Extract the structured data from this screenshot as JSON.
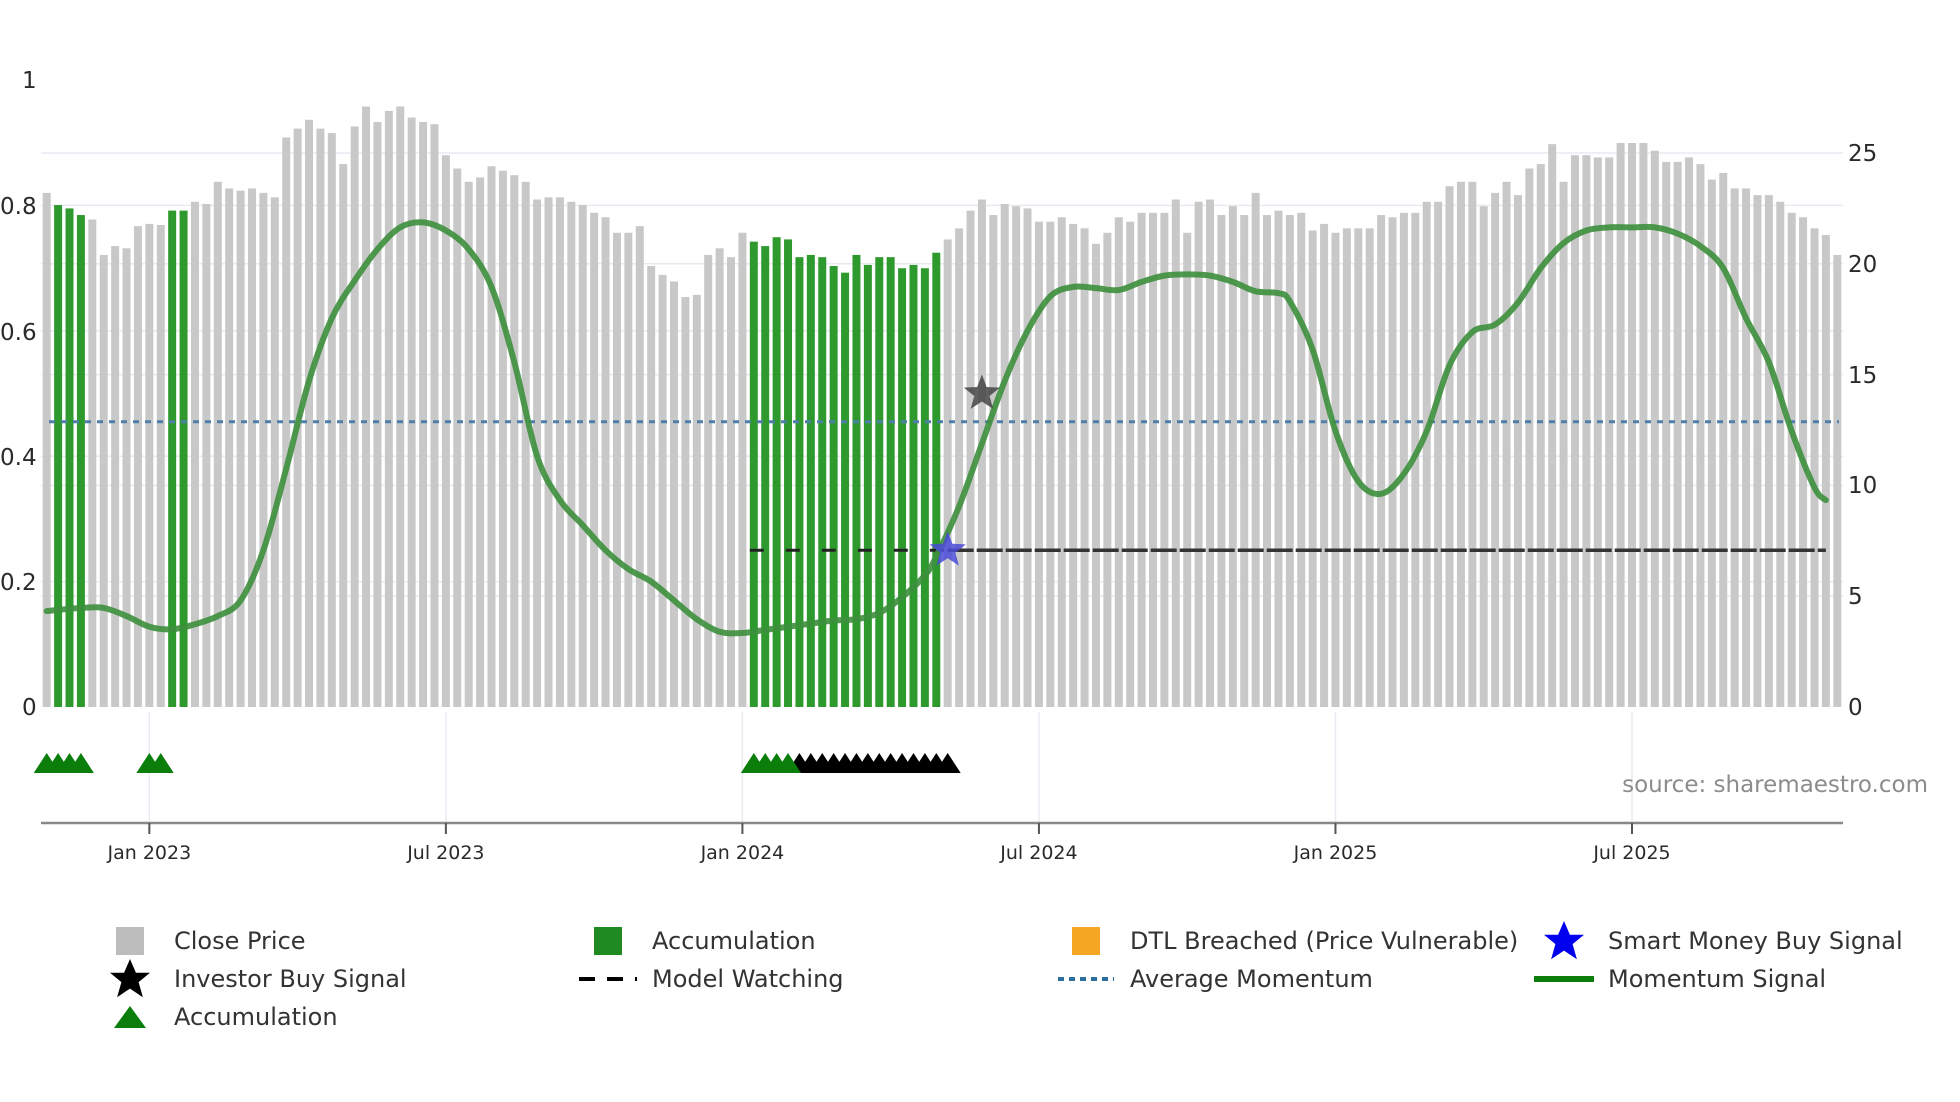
{
  "chart_data": {
    "type": "bar",
    "title": "",
    "xlabel": "",
    "ylabel_left": "",
    "ylabel_right": "",
    "left_axis": {
      "ticks": [
        0,
        0.2,
        0.4,
        0.6,
        0.8,
        1
      ],
      "tick_labels": [
        "0",
        "0.2",
        "0.4",
        "0.6",
        "0.8",
        "1"
      ],
      "range": [
        0,
        1
      ]
    },
    "right_axis": {
      "ticks": [
        0,
        5,
        10,
        15,
        20,
        25
      ],
      "tick_labels": [
        "0",
        "5",
        "10",
        "15",
        "20",
        "25"
      ],
      "range": [
        0,
        28.3
      ]
    },
    "x_ticks": [
      {
        "label": "Jan 2023",
        "bar_index": 9
      },
      {
        "label": "Jul 2023",
        "bar_index": 35
      },
      {
        "label": "Jan 2024",
        "bar_index": 61
      },
      {
        "label": "Jul 2024",
        "bar_index": 87
      },
      {
        "label": "Jan 2025",
        "bar_index": 113
      },
      {
        "label": "Jul 2025",
        "bar_index": 139
      }
    ],
    "grid": true,
    "legend_position": "bottom",
    "series": [
      {
        "name": "Close Price",
        "type": "bar",
        "axis": "right",
        "color": "#c8c8c8",
        "values": [
          23.2,
          22.65,
          22.5,
          22.2,
          22.0,
          20.4,
          20.8,
          20.7,
          21.7,
          21.8,
          21.75,
          22.4,
          22.4,
          22.8,
          22.7,
          23.7,
          23.4,
          23.3,
          23.4,
          23.2,
          23.0,
          25.7,
          26.1,
          26.5,
          26.1,
          25.9,
          24.5,
          26.2,
          27.1,
          26.4,
          26.9,
          27.1,
          26.6,
          26.4,
          26.3,
          24.9,
          24.3,
          23.7,
          23.9,
          24.4,
          24.2,
          24.0,
          23.7,
          22.9,
          23.0,
          23.0,
          22.8,
          22.65,
          22.3,
          22.1,
          21.4,
          21.4,
          21.7,
          19.9,
          19.5,
          19.2,
          18.5,
          18.6,
          20.4,
          20.7,
          20.3,
          21.4,
          21.0,
          20.8,
          21.2,
          21.1,
          20.3,
          20.4,
          20.3,
          19.9,
          19.6,
          20.4,
          19.95,
          20.3,
          20.3,
          19.8,
          19.95,
          19.8,
          20.5,
          21.1,
          21.6,
          22.4,
          22.9,
          22.2,
          22.7,
          22.6,
          22.5,
          21.9,
          21.9,
          22.1,
          21.8,
          21.6,
          20.9,
          21.4,
          22.1,
          21.9,
          22.3,
          22.3,
          22.3,
          22.9,
          21.4,
          22.8,
          22.9,
          22.2,
          22.6,
          22.2,
          23.2,
          22.2,
          22.4,
          22.2,
          22.3,
          21.5,
          21.8,
          21.4,
          21.6,
          21.6,
          21.6,
          22.2,
          22.1,
          22.3,
          22.3,
          22.8,
          22.8,
          23.5,
          23.7,
          23.7,
          22.6,
          23.2,
          23.7,
          23.1,
          24.3,
          24.5,
          25.4,
          23.7,
          24.9,
          24.9,
          24.8,
          24.8,
          25.45,
          25.45,
          25.45,
          25.1,
          24.6,
          24.6,
          24.8,
          24.5,
          23.8,
          24.1,
          23.4,
          23.4,
          23.1,
          23.1,
          22.8,
          22.3,
          22.1,
          21.6,
          21.3,
          20.4
        ]
      },
      {
        "name": "Accumulation",
        "type": "bar-highlight",
        "axis": "right",
        "color": "#2e9a2e",
        "bar_indices": [
          1,
          2,
          3,
          11,
          12,
          62,
          63,
          64,
          65,
          66,
          67,
          68,
          69,
          70,
          71,
          72,
          73,
          74,
          75,
          76,
          77,
          78
        ]
      },
      {
        "name": "Momentum Signal",
        "type": "line",
        "axis": "left",
        "color": "#3d8f3d",
        "points": [
          [
            0,
            0.153
          ],
          [
            3,
            0.158
          ],
          [
            5,
            0.158
          ],
          [
            7,
            0.145
          ],
          [
            9,
            0.128
          ],
          [
            11,
            0.124
          ],
          [
            13,
            0.132
          ],
          [
            15,
            0.145
          ],
          [
            17,
            0.17
          ],
          [
            19,
            0.25
          ],
          [
            21,
            0.38
          ],
          [
            23,
            0.52
          ],
          [
            25,
            0.62
          ],
          [
            27,
            0.68
          ],
          [
            29,
            0.73
          ],
          [
            31,
            0.765
          ],
          [
            33,
            0.773
          ],
          [
            35,
            0.76
          ],
          [
            37,
            0.73
          ],
          [
            39,
            0.67
          ],
          [
            41,
            0.55
          ],
          [
            43,
            0.4
          ],
          [
            45,
            0.33
          ],
          [
            47,
            0.29
          ],
          [
            49,
            0.25
          ],
          [
            51,
            0.22
          ],
          [
            53,
            0.2
          ],
          [
            55,
            0.17
          ],
          [
            57,
            0.14
          ],
          [
            59,
            0.12
          ],
          [
            61,
            0.118
          ],
          [
            63,
            0.123
          ],
          [
            65,
            0.128
          ],
          [
            67,
            0.133
          ],
          [
            69,
            0.138
          ],
          [
            71,
            0.14
          ],
          [
            73,
            0.15
          ],
          [
            75,
            0.175
          ],
          [
            77,
            0.21
          ],
          [
            78,
            0.24
          ],
          [
            80,
            0.32
          ],
          [
            82,
            0.42
          ],
          [
            84,
            0.52
          ],
          [
            86,
            0.6
          ],
          [
            88,
            0.655
          ],
          [
            90,
            0.67
          ],
          [
            92,
            0.668
          ],
          [
            94,
            0.665
          ],
          [
            96,
            0.678
          ],
          [
            98,
            0.688
          ],
          [
            100,
            0.69
          ],
          [
            102,
            0.688
          ],
          [
            104,
            0.678
          ],
          [
            106,
            0.663
          ],
          [
            108,
            0.66
          ],
          [
            109,
            0.647
          ],
          [
            111,
            0.57
          ],
          [
            113,
            0.44
          ],
          [
            115,
            0.36
          ],
          [
            117,
            0.34
          ],
          [
            119,
            0.372
          ],
          [
            121,
            0.44
          ],
          [
            123,
            0.545
          ],
          [
            125,
            0.598
          ],
          [
            127,
            0.61
          ],
          [
            129,
            0.645
          ],
          [
            131,
            0.7
          ],
          [
            133,
            0.74
          ],
          [
            135,
            0.76
          ],
          [
            137,
            0.765
          ],
          [
            139,
            0.765
          ],
          [
            141,
            0.765
          ],
          [
            143,
            0.755
          ],
          [
            145,
            0.735
          ],
          [
            147,
            0.7
          ],
          [
            149,
            0.62
          ],
          [
            151,
            0.55
          ],
          [
            153,
            0.44
          ],
          [
            155,
            0.35
          ],
          [
            156,
            0.33
          ]
        ]
      },
      {
        "name": "Average Momentum",
        "type": "hline",
        "axis": "left",
        "color": "#4f7fa8",
        "value": 0.455,
        "style": "dotted"
      },
      {
        "name": "Model Watching",
        "type": "hline-segment",
        "axis": "left",
        "color": "#333333",
        "value": 0.25,
        "from_bar": 62,
        "to_bar": 156,
        "style": "dashed"
      },
      {
        "name": "Smart Money Buy Signal",
        "type": "marker",
        "marker": "star",
        "axis": "left",
        "color": "#4a4ad8",
        "points": [
          [
            79,
            0.25
          ]
        ]
      },
      {
        "name": "Investor Buy Signal",
        "type": "marker",
        "marker": "star",
        "axis": "left",
        "color": "#444444",
        "points": [
          [
            82,
            0.5
          ]
        ]
      },
      {
        "name": "Accumulation",
        "type": "marker",
        "marker": "triangle",
        "row": "bottom",
        "color": "#0a7d0a",
        "bar_indices": [
          0,
          1,
          2,
          3,
          9,
          10,
          62,
          63,
          64,
          65
        ]
      },
      {
        "name": "Model Watching markers",
        "type": "marker",
        "marker": "triangle",
        "row": "bottom",
        "color": "#000000",
        "bar_indices": [
          66,
          67,
          68,
          69,
          70,
          71,
          72,
          73,
          74,
          75,
          76,
          77,
          78,
          79
        ]
      }
    ],
    "annotations": [
      "source: sharemaestro.com"
    ]
  },
  "axes": {
    "left_labels": [
      "0",
      "0.2",
      "0.4",
      "0.6",
      "0.8",
      "1"
    ],
    "right_labels": [
      "0",
      "5",
      "10",
      "15",
      "20",
      "25"
    ],
    "x_labels": [
      "Jan 2023",
      "Jul 2023",
      "Jan 2024",
      "Jul 2024",
      "Jan 2025",
      "Jul 2025"
    ]
  },
  "source_text": "source: sharemaestro.com",
  "legend": {
    "items": [
      {
        "label": "Close Price",
        "icon": "grey-square-icon",
        "color": "#bdbdbd"
      },
      {
        "label": "Accumulation",
        "icon": "green-square-icon",
        "color": "#1f8a1f"
      },
      {
        "label": "DTL Breached (Price Vulnerable)",
        "icon": "orange-square-icon",
        "color": "#f5a623"
      },
      {
        "label": "Smart Money Buy Signal",
        "icon": "blue-star-icon",
        "color": "#0000ee"
      },
      {
        "label": "Investor Buy Signal",
        "icon": "black-star-icon",
        "color": "#000000"
      },
      {
        "label": "Model Watching",
        "icon": "dashed-line-icon",
        "color": "#000000"
      },
      {
        "label": "Average Momentum",
        "icon": "dotted-line-icon",
        "color": "#2c6e9e"
      },
      {
        "label": "Momentum Signal",
        "icon": "solid-line-icon",
        "color": "#0a7d0a"
      },
      {
        "label": "Accumulation",
        "icon": "green-triangle-icon",
        "color": "#0a7d0a"
      }
    ]
  }
}
